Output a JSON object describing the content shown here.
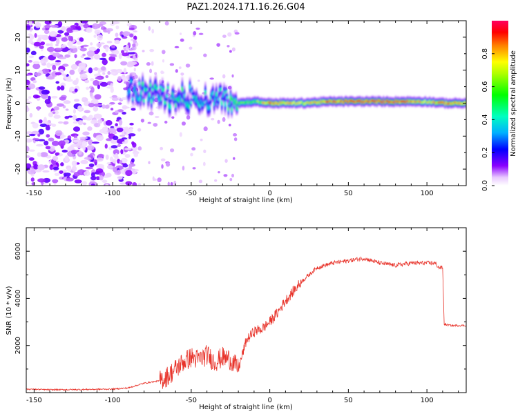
{
  "title": "PAZ1.2024.171.16.26.G04",
  "chart_data": [
    {
      "type": "heatmap",
      "xlabel": "Height of straight line (km)",
      "ylabel": "Frequency (Hz)",
      "xlim": [
        -155,
        125
      ],
      "ylim": [
        -25,
        25
      ],
      "xticks": [
        -150,
        -100,
        -50,
        0,
        50,
        100
      ],
      "yticks": [
        -20,
        -10,
        0,
        10,
        20
      ],
      "colorbar": {
        "label": "Normalized spectral amplitude",
        "range": [
          0,
          1
        ],
        "ticks": [
          0.0,
          0.2,
          0.4,
          0.6,
          0.8
        ]
      },
      "description_data": {
        "noise_region_x": [
          -155,
          -90
        ],
        "ridge_start_x": -90,
        "ridge_frequency_near_zero_after_x": -20,
        "ridge_profile": [
          {
            "x": -90,
            "f": 4,
            "amp": 0.35
          },
          {
            "x": -80,
            "f": 3,
            "amp": 0.45
          },
          {
            "x": -70,
            "f": 2.5,
            "amp": 0.4
          },
          {
            "x": -60,
            "f": 1.5,
            "amp": 0.45
          },
          {
            "x": -50,
            "f": 2,
            "amp": 0.4
          },
          {
            "x": -40,
            "f": 1,
            "amp": 0.4
          },
          {
            "x": -30,
            "f": 1.5,
            "amp": 0.4
          },
          {
            "x": -20,
            "f": 0,
            "amp": 0.6
          },
          {
            "x": -10,
            "f": 0.5,
            "amp": 0.55
          },
          {
            "x": 0,
            "f": 0,
            "amp": 0.85
          },
          {
            "x": 20,
            "f": 0,
            "amp": 0.7
          },
          {
            "x": 40,
            "f": 0.5,
            "amp": 0.85
          },
          {
            "x": 60,
            "f": 0.5,
            "amp": 0.95
          },
          {
            "x": 80,
            "f": 0.5,
            "amp": 0.9
          },
          {
            "x": 100,
            "f": 0.5,
            "amp": 0.7
          },
          {
            "x": 110,
            "f": 0,
            "amp": 0.85
          },
          {
            "x": 125,
            "f": 0,
            "amp": 0.8
          }
        ]
      }
    },
    {
      "type": "line",
      "xlabel": "Height of straight line (km)",
      "ylabel": "SNR (10 * v/v)",
      "xlim": [
        -155,
        125
      ],
      "ylim": [
        0,
        7000
      ],
      "xticks": [
        -150,
        -100,
        -50,
        0,
        50,
        100
      ],
      "yticks": [
        2000,
        4000,
        6000
      ],
      "series": [
        {
          "color": "#e8332a",
          "x": [
            -155,
            -140,
            -120,
            -100,
            -90,
            -85,
            -80,
            -75,
            -70,
            -65,
            -60,
            -55,
            -50,
            -45,
            -40,
            -35,
            -30,
            -25,
            -20,
            -15,
            -10,
            -5,
            0,
            5,
            10,
            15,
            20,
            25,
            30,
            40,
            50,
            60,
            70,
            80,
            90,
            100,
            105,
            108,
            110,
            111,
            115,
            125
          ],
          "y": [
            150,
            120,
            130,
            150,
            200,
            300,
            400,
            450,
            500,
            700,
            1000,
            1300,
            1500,
            1400,
            1600,
            1300,
            1500,
            1400,
            1000,
            2200,
            2600,
            2700,
            3000,
            3400,
            3900,
            4300,
            4700,
            5000,
            5300,
            5500,
            5600,
            5700,
            5500,
            5400,
            5500,
            5500,
            5500,
            5300,
            5300,
            2900,
            2850,
            2850
          ]
        }
      ]
    }
  ]
}
